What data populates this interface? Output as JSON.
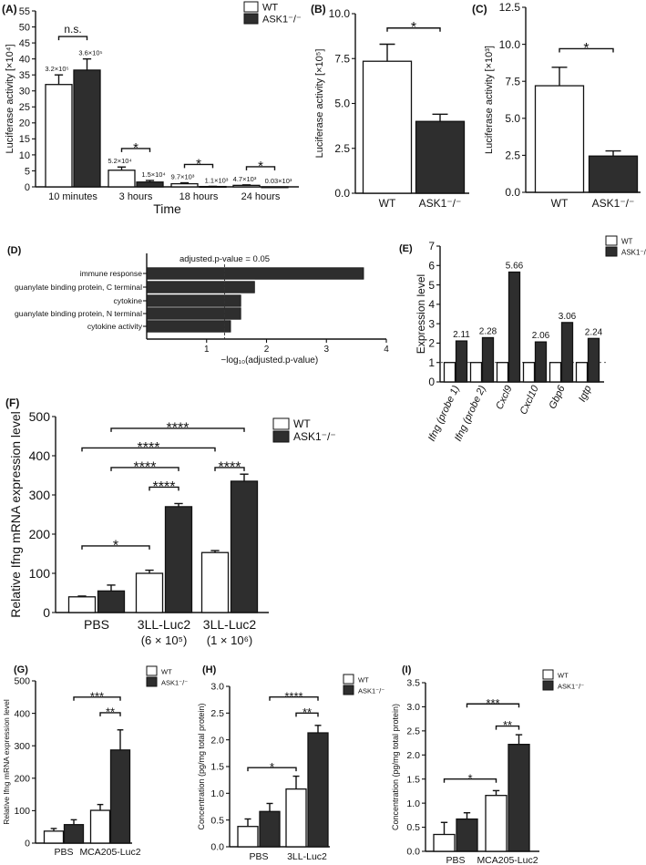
{
  "chart_data": [
    {
      "id": "A",
      "type": "bar",
      "label": "(A)",
      "ylabel": "Luciferase activity [×10⁴]",
      "xlabel": "Time",
      "ylim": [
        0,
        55
      ],
      "yticks": [
        "0",
        "5",
        "10",
        "15",
        "20",
        "25",
        "30",
        "35",
        "40",
        "45",
        "50",
        "55"
      ],
      "categories": [
        "10 minutes",
        "3 hours",
        "18 hours",
        "24 hours"
      ],
      "series": [
        {
          "name": "WT",
          "color": "#ffffff",
          "values": [
            32,
            5.2,
            0.97,
            0.47
          ],
          "errors": [
            3,
            1.0,
            0.3,
            0.15
          ],
          "value_labels": [
            "3.2×10⁵",
            "5.2×10⁴",
            "9.7×10³",
            "4.7×10³"
          ]
        },
        {
          "name": "ASK1⁻/⁻",
          "color": "#2e2e2e",
          "values": [
            36.5,
            1.5,
            0.11,
            0.003
          ],
          "errors": [
            3.5,
            0.5,
            0.05,
            0.0
          ],
          "value_labels": [
            "3.6×10⁵",
            "1.5×10⁴",
            "1.1×10³",
            "0.03×10³"
          ]
        }
      ],
      "brackets": [
        {
          "from": [
            0,
            0
          ],
          "to": [
            0,
            1
          ],
          "y": 47,
          "label": "n.s."
        },
        {
          "from": [
            1,
            0
          ],
          "to": [
            1,
            1
          ],
          "y": 12,
          "label": "*"
        },
        {
          "from": [
            2,
            0
          ],
          "to": [
            2,
            1
          ],
          "y": 7,
          "label": "*"
        },
        {
          "from": [
            3,
            0
          ],
          "to": [
            3,
            1
          ],
          "y": 6.3,
          "label": "*"
        }
      ],
      "legend": [
        "WT",
        "ASK1⁻/⁻"
      ]
    },
    {
      "id": "B",
      "type": "bar",
      "label": "(B)",
      "ylabel": "Luciferase activity [×10⁵]",
      "ylim": [
        0,
        10
      ],
      "yticks": [
        "0.0",
        "2.5",
        "5.0",
        "7.5",
        "10.0"
      ],
      "categories": [
        "WT",
        "ASK1⁻/⁻"
      ],
      "colors": [
        "#ffffff",
        "#2e2e2e"
      ],
      "series": [
        {
          "name": "Luciferase activity",
          "values": [
            7.35,
            4.0
          ],
          "errors": [
            0.95,
            0.4
          ]
        }
      ],
      "brackets": [
        {
          "from": [
            0,
            0
          ],
          "to": [
            1,
            0
          ],
          "y": 9.2,
          "label": "*"
        }
      ]
    },
    {
      "id": "C",
      "type": "bar",
      "label": "(C)",
      "ylabel": "Luciferase activity [×10³]",
      "ylim": [
        0,
        12.5
      ],
      "yticks": [
        "0.0",
        "2.5",
        "5.0",
        "7.5",
        "10.0",
        "12.5"
      ],
      "categories": [
        "WT",
        "ASK1⁻/⁻"
      ],
      "colors": [
        "#ffffff",
        "#2e2e2e"
      ],
      "series": [
        {
          "name": "Luciferase activity",
          "values": [
            7.2,
            2.45
          ],
          "errors": [
            1.25,
            0.35
          ]
        }
      ],
      "brackets": [
        {
          "from": [
            0,
            0
          ],
          "to": [
            1,
            0
          ],
          "y": 9.7,
          "label": "*"
        }
      ]
    },
    {
      "id": "D",
      "type": "hbar",
      "label": "(D)",
      "xlabel": "−log₁₀(adjusted.p-value)",
      "xlim": [
        0,
        4
      ],
      "xticks": [
        "1",
        "2",
        "3",
        "4"
      ],
      "categories": [
        "immune response",
        "guanylate binding protein, C terminal",
        "cytokine",
        "guanylate binding protein, N terminal",
        "cytokine activity"
      ],
      "values": [
        3.62,
        1.8,
        1.57,
        1.57,
        1.4
      ],
      "threshold": 1.3,
      "threshold_label": "adjusted.p-value = 0.05",
      "bar_color": "#2e2e2e"
    },
    {
      "id": "E",
      "type": "bar",
      "label": "(E)",
      "ylabel": "Expression level",
      "ylim": [
        0,
        7
      ],
      "yticks": [
        "0",
        "1",
        "2",
        "3",
        "4",
        "5",
        "6",
        "7"
      ],
      "categories": [
        "Ifng (probe 1)",
        "Ifng (probe 2)",
        "Cxcl9",
        "Cxcl10",
        "Gbp6",
        "Igtp"
      ],
      "reference_line": 1,
      "series": [
        {
          "name": "WT",
          "color": "#ffffff",
          "values": [
            1,
            1,
            1,
            1,
            1,
            1
          ],
          "errors": [
            0,
            0,
            0,
            0,
            0,
            0
          ]
        },
        {
          "name": "ASK1⁻/⁻",
          "color": "#2e2e2e",
          "values": [
            2.11,
            2.28,
            5.66,
            2.06,
            3.06,
            2.24
          ],
          "errors": [
            0,
            0,
            0,
            0,
            0,
            0
          ],
          "value_labels": [
            "2.11",
            "2.28",
            "5.66",
            "2.06",
            "3.06",
            "2.24"
          ]
        }
      ],
      "brackets": [],
      "legend": [
        "WT",
        "ASK1⁻/⁻"
      ]
    },
    {
      "id": "F",
      "type": "bar",
      "label": "(F)",
      "ylabel": "Relative Ifng mRNA expression level",
      "ylim": [
        0,
        500
      ],
      "yticks": [
        "0",
        "100",
        "200",
        "300",
        "400",
        "500"
      ],
      "categories": [
        "PBS",
        "3LL-Luc2",
        "3LL-Luc2"
      ],
      "sublabels": [
        "",
        "(6 × 10⁵)",
        "(1 × 10⁶)"
      ],
      "series": [
        {
          "name": "WT",
          "color": "#ffffff",
          "values": [
            40,
            100,
            153
          ],
          "errors": [
            2,
            8,
            5
          ]
        },
        {
          "name": "ASK1⁻/⁻",
          "color": "#2e2e2e",
          "values": [
            55,
            270,
            335
          ],
          "errors": [
            15,
            8,
            18
          ]
        }
      ],
      "brackets": [
        {
          "from": [
            0,
            0
          ],
          "to": [
            1,
            0
          ],
          "y": 170,
          "label": "*"
        },
        {
          "from": [
            1,
            0
          ],
          "to": [
            1,
            1
          ],
          "y": 320,
          "label": "****"
        },
        {
          "from": [
            0,
            1
          ],
          "to": [
            1,
            1
          ],
          "y": 370,
          "label": "****"
        },
        {
          "from": [
            2,
            0
          ],
          "to": [
            2,
            1
          ],
          "y": 370,
          "label": "****"
        },
        {
          "from": [
            0,
            0
          ],
          "to": [
            2,
            0
          ],
          "y": 420,
          "label": "****"
        },
        {
          "from": [
            0,
            1
          ],
          "to": [
            2,
            1
          ],
          "y": 470,
          "label": "****"
        }
      ],
      "legend": [
        "WT",
        "ASK1⁻/⁻"
      ]
    },
    {
      "id": "G",
      "type": "bar",
      "label": "(G)",
      "ylabel": "Relative Ifng mRNA expression level",
      "ylim": [
        0,
        500
      ],
      "yticks": [
        "0",
        "100",
        "200",
        "300",
        "400",
        "500"
      ],
      "categories": [
        "PBS",
        "MCA205-Luc2"
      ],
      "series": [
        {
          "name": "WT",
          "color": "#ffffff",
          "values": [
            37,
            101
          ],
          "errors": [
            8,
            18
          ]
        },
        {
          "name": "ASK1⁻/⁻",
          "color": "#2e2e2e",
          "values": [
            57,
            287
          ],
          "errors": [
            15,
            62
          ]
        }
      ],
      "brackets": [
        {
          "from": [
            1,
            0
          ],
          "to": [
            1,
            1
          ],
          "y": 402,
          "label": "**"
        },
        {
          "from": [
            0,
            1
          ],
          "to": [
            1,
            1
          ],
          "y": 450,
          "label": "***"
        }
      ],
      "legend": [
        "WT",
        "ASK1⁻/⁻"
      ]
    },
    {
      "id": "H",
      "type": "bar",
      "label": "(H)",
      "ylabel": "Concentration (pg/mg total protein)",
      "ylim": [
        0,
        3
      ],
      "yticks": [
        "0.0",
        "0.5",
        "1.0",
        "1.5",
        "2.0",
        "2.5",
        "3.0"
      ],
      "categories": [
        "PBS",
        "3LL-Luc2"
      ],
      "series": [
        {
          "name": "WT",
          "color": "#ffffff",
          "values": [
            0.38,
            1.08
          ],
          "errors": [
            0.14,
            0.24
          ]
        },
        {
          "name": "ASK1⁻/⁻",
          "color": "#2e2e2e",
          "values": [
            0.66,
            2.13
          ],
          "errors": [
            0.15,
            0.14
          ]
        }
      ],
      "brackets": [
        {
          "from": [
            0,
            0
          ],
          "to": [
            1,
            0
          ],
          "y": 1.48,
          "label": "*"
        },
        {
          "from": [
            1,
            0
          ],
          "to": [
            1,
            1
          ],
          "y": 2.5,
          "label": "**"
        },
        {
          "from": [
            0,
            1
          ],
          "to": [
            1,
            1
          ],
          "y": 2.8,
          "label": "****"
        }
      ],
      "legend": [
        "WT",
        "ASK1⁻/⁻"
      ]
    },
    {
      "id": "I",
      "type": "bar",
      "label": "(I)",
      "ylabel": "Concentration (pg/mg total protein)",
      "ylim": [
        0,
        3.5
      ],
      "yticks": [
        "0.0",
        "0.5",
        "1.0",
        "1.5",
        "2.0",
        "2.5",
        "3.0",
        "3.5"
      ],
      "categories": [
        "PBS",
        "MCA205-Luc2"
      ],
      "series": [
        {
          "name": "WT",
          "color": "#ffffff",
          "values": [
            0.35,
            1.16
          ],
          "errors": [
            0.25,
            0.1
          ]
        },
        {
          "name": "ASK1⁻/⁻",
          "color": "#2e2e2e",
          "values": [
            0.67,
            2.22
          ],
          "errors": [
            0.13,
            0.2
          ]
        }
      ],
      "brackets": [
        {
          "from": [
            0,
            0
          ],
          "to": [
            1,
            0
          ],
          "y": 1.5,
          "label": "*"
        },
        {
          "from": [
            1,
            0
          ],
          "to": [
            1,
            1
          ],
          "y": 2.6,
          "label": "**"
        },
        {
          "from": [
            0,
            1
          ],
          "to": [
            1,
            1
          ],
          "y": 3.06,
          "label": "***"
        }
      ],
      "legend": [
        "WT",
        "ASK1⁻/⁻"
      ]
    }
  ]
}
